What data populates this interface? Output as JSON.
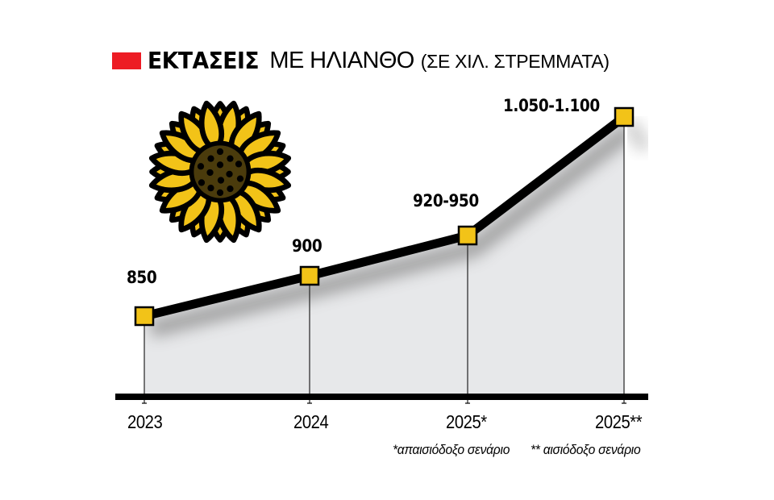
{
  "header": {
    "title_bold": "ΕΚΤΑΣΕΙΣ",
    "title_regular": "ΜΕ ΗΛΙΑΝΘΟ",
    "title_unit": "(ΣΕ ΧΙΛ. ΣΤΡΕΜΜΑΤΑ)",
    "marker_color": "#ed1c24"
  },
  "chart_data": {
    "type": "line",
    "title": "ΕΚΤΑΣΕΙΣ ΜΕ ΗΛΙΑΝΘΟ (ΣΕ ΧΙΛ. ΣΤΡΕΜΜΑΤΑ)",
    "xlabel": "",
    "ylabel": "χιλ. στρέμματα",
    "categories": [
      "2023",
      "2024",
      "2025*",
      "2025**"
    ],
    "series": [
      {
        "name": "Εκτάσεις με ηλίανθο",
        "values": [
          850,
          900,
          935,
          1075
        ],
        "ranges": [
          [
            850,
            850
          ],
          [
            900,
            900
          ],
          [
            920,
            950
          ],
          [
            1050,
            1100
          ]
        ],
        "labels": [
          "850",
          "900",
          "920-950",
          "1.050-1.100"
        ]
      }
    ],
    "grid": false,
    "legend": "none",
    "annotations": [
      "*απαισιόδοξο σενάριο",
      "** αισιόδοξο σενάριο"
    ]
  },
  "footnotes": {
    "pessimistic": "*απαισιόδοξο σενάριο",
    "optimistic": "** αισιόδοξο σενάριο"
  },
  "colors": {
    "line": "#000000",
    "marker_fill": "#f2c318",
    "area_fill": "#e7e8ea",
    "petal": "#f2c318",
    "disc": "#4a3b0c"
  }
}
